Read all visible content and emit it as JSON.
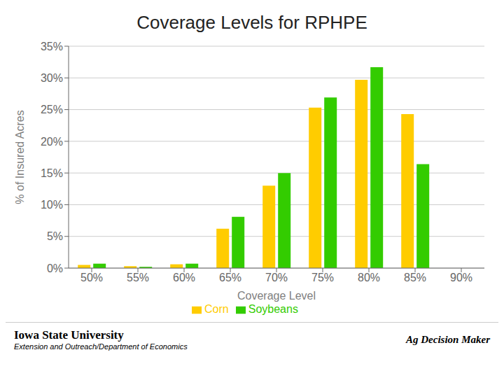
{
  "chart_data": {
    "type": "bar",
    "title": "Coverage Levels for RPHPE",
    "xlabel": "Coverage Level",
    "ylabel": "% of Insured Acres",
    "categories": [
      "50%",
      "55%",
      "60%",
      "65%",
      "70%",
      "75%",
      "80%",
      "85%",
      "90%"
    ],
    "series": [
      {
        "name": "Corn",
        "color": "#FFCC00",
        "values": [
          0.5,
          0.3,
          0.6,
          6.2,
          13.0,
          25.3,
          29.7,
          24.3,
          0.0
        ]
      },
      {
        "name": "Soybeans",
        "color": "#33CC00",
        "values": [
          0.7,
          0.2,
          0.7,
          8.1,
          15.0,
          26.9,
          31.7,
          16.4,
          0.0
        ]
      }
    ],
    "ylim": [
      0,
      35
    ],
    "yticks": [
      {
        "value": 0,
        "label": "0%"
      },
      {
        "value": 5,
        "label": "5%"
      },
      {
        "value": 10,
        "label": "10%"
      },
      {
        "value": 15,
        "label": "15%"
      },
      {
        "value": 20,
        "label": "20%"
      },
      {
        "value": 25,
        "label": "25%"
      },
      {
        "value": 30,
        "label": "30%"
      },
      {
        "value": 35,
        "label": "35%"
      }
    ],
    "grid": true,
    "legend": "bottom",
    "annotations": [
      "Iowa State University",
      "Extension and Outreach/Department of Economics",
      "Ag Decision Maker"
    ]
  }
}
